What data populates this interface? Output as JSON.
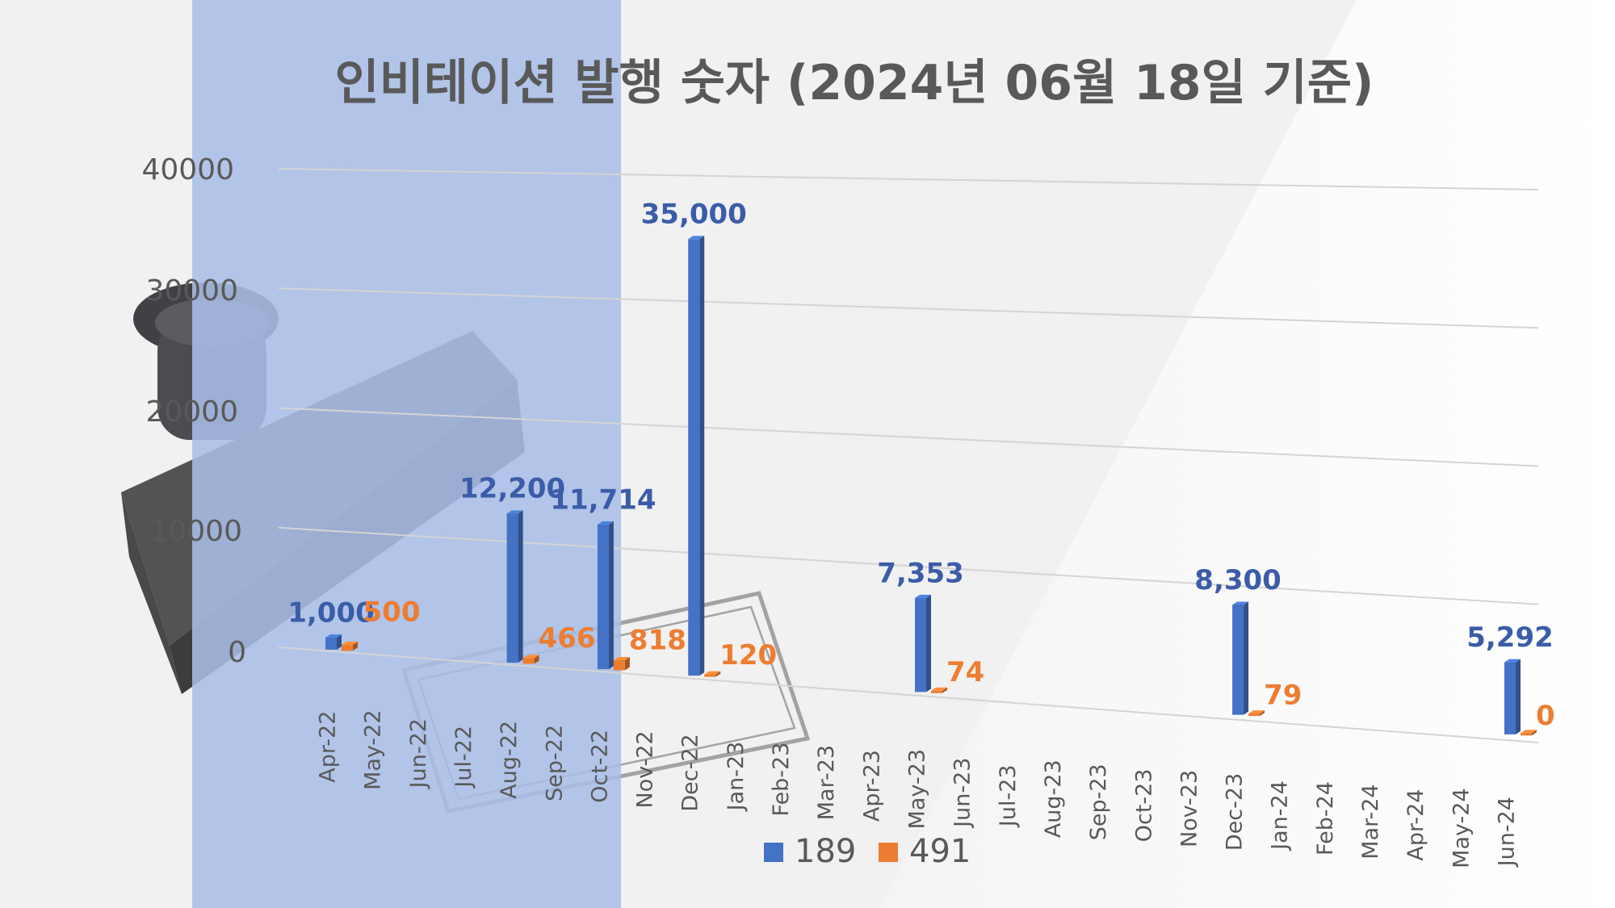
{
  "chart_data": {
    "type": "bar",
    "title": "인비테이션 발행 숫자 (2024년 06월 18일 기준)",
    "categories": [
      "Apr-22",
      "May-22",
      "Jun-22",
      "Jul-22",
      "Aug-22",
      "Sep-22",
      "Oct-22",
      "Nov-22",
      "Dec-22",
      "Jan-23",
      "Feb-23",
      "Mar-23",
      "Apr-23",
      "May-23",
      "Jun-23",
      "Jul-23",
      "Aug-23",
      "Sep-23",
      "Oct-23",
      "Nov-23",
      "Dec-23",
      "Jan-24",
      "Feb-24",
      "Mar-24",
      "Apr-24",
      "May-24",
      "Jun-24"
    ],
    "series": [
      {
        "name": "189",
        "color": "#4472c4",
        "label_color": "#3b5ca8",
        "values": [
          1000,
          null,
          null,
          null,
          12200,
          null,
          11714,
          null,
          35000,
          null,
          null,
          null,
          null,
          7353,
          null,
          null,
          null,
          null,
          null,
          null,
          8300,
          null,
          null,
          null,
          null,
          null,
          5292
        ]
      },
      {
        "name": "491",
        "color": "#ed7d31",
        "label_color": "#ed7d31",
        "values": [
          500,
          null,
          null,
          null,
          466,
          null,
          818,
          null,
          120,
          null,
          null,
          null,
          null,
          74,
          null,
          null,
          null,
          null,
          null,
          null,
          79,
          null,
          null,
          null,
          null,
          null,
          0
        ]
      }
    ],
    "data_labels": {
      "189": [
        "1,000",
        null,
        null,
        null,
        "12,200",
        null,
        "11,714",
        null,
        "35,000",
        null,
        null,
        null,
        null,
        "7,353",
        null,
        null,
        null,
        null,
        null,
        null,
        "8,300",
        null,
        null,
        null,
        null,
        null,
        "5,292"
      ],
      "491": [
        "500",
        null,
        null,
        null,
        "466",
        null,
        "818",
        null,
        "120",
        null,
        null,
        null,
        null,
        "74",
        null,
        null,
        null,
        null,
        null,
        null,
        "79",
        null,
        null,
        null,
        null,
        null,
        "0"
      ]
    },
    "yticks": [
      "0",
      "10000",
      "20000",
      "30000",
      "40000"
    ],
    "ylim": [
      0,
      40000
    ],
    "xlabel": "",
    "ylabel": "",
    "grid": true,
    "legend_position": "bottom"
  }
}
